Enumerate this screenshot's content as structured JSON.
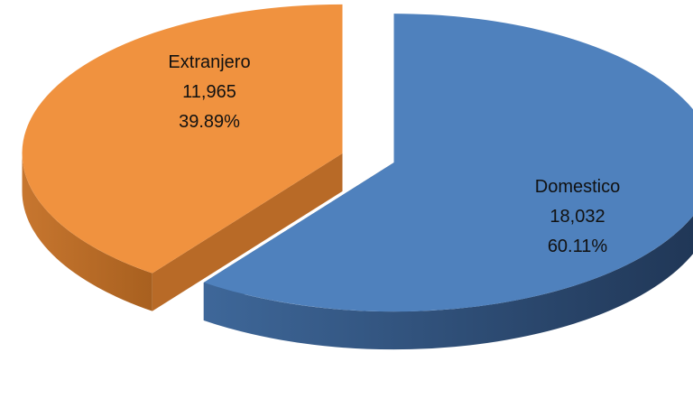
{
  "chart_data": {
    "type": "pie",
    "variant": "3d-exploded",
    "title": "",
    "slices": [
      {
        "name": "Domestico",
        "value": 18032,
        "value_label": "18,032",
        "percent_label": "60.11%",
        "percent": 60.11,
        "color": "#4f81bd",
        "side_color": "#2f4f76"
      },
      {
        "name": "Extranjero",
        "value": 11965,
        "value_label": "11,965",
        "percent_label": "39.89%",
        "percent": 39.89,
        "color": "#f0923f",
        "side_color": "#b86a27"
      }
    ],
    "legend": "none"
  }
}
